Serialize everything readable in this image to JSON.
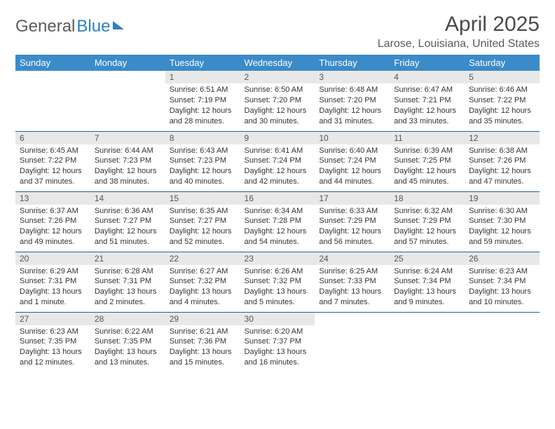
{
  "brand": {
    "part1": "General",
    "part2": "Blue"
  },
  "title": "April 2025",
  "location": "Larose, Louisiana, United States",
  "colors": {
    "header_bg": "#3b8bc9",
    "header_text": "#ffffff",
    "daynum_bg": "#e8e8e8",
    "row_border": "#2f5e8a",
    "body_text": "#333333",
    "title_text": "#4a4a4a",
    "brand_gray": "#5a5a5a",
    "brand_blue": "#2f7fc1"
  },
  "typography": {
    "title_fontsize": 30,
    "location_fontsize": 16,
    "header_fontsize": 13,
    "daynum_fontsize": 12,
    "cell_fontsize": 11
  },
  "weekdays": [
    "Sunday",
    "Monday",
    "Tuesday",
    "Wednesday",
    "Thursday",
    "Friday",
    "Saturday"
  ],
  "weeks": [
    [
      null,
      null,
      {
        "d": "1",
        "sr": "6:51 AM",
        "ss": "7:19 PM",
        "dl": "12 hours and 28 minutes."
      },
      {
        "d": "2",
        "sr": "6:50 AM",
        "ss": "7:20 PM",
        "dl": "12 hours and 30 minutes."
      },
      {
        "d": "3",
        "sr": "6:48 AM",
        "ss": "7:20 PM",
        "dl": "12 hours and 31 minutes."
      },
      {
        "d": "4",
        "sr": "6:47 AM",
        "ss": "7:21 PM",
        "dl": "12 hours and 33 minutes."
      },
      {
        "d": "5",
        "sr": "6:46 AM",
        "ss": "7:22 PM",
        "dl": "12 hours and 35 minutes."
      }
    ],
    [
      {
        "d": "6",
        "sr": "6:45 AM",
        "ss": "7:22 PM",
        "dl": "12 hours and 37 minutes."
      },
      {
        "d": "7",
        "sr": "6:44 AM",
        "ss": "7:23 PM",
        "dl": "12 hours and 38 minutes."
      },
      {
        "d": "8",
        "sr": "6:43 AM",
        "ss": "7:23 PM",
        "dl": "12 hours and 40 minutes."
      },
      {
        "d": "9",
        "sr": "6:41 AM",
        "ss": "7:24 PM",
        "dl": "12 hours and 42 minutes."
      },
      {
        "d": "10",
        "sr": "6:40 AM",
        "ss": "7:24 PM",
        "dl": "12 hours and 44 minutes."
      },
      {
        "d": "11",
        "sr": "6:39 AM",
        "ss": "7:25 PM",
        "dl": "12 hours and 45 minutes."
      },
      {
        "d": "12",
        "sr": "6:38 AM",
        "ss": "7:26 PM",
        "dl": "12 hours and 47 minutes."
      }
    ],
    [
      {
        "d": "13",
        "sr": "6:37 AM",
        "ss": "7:26 PM",
        "dl": "12 hours and 49 minutes."
      },
      {
        "d": "14",
        "sr": "6:36 AM",
        "ss": "7:27 PM",
        "dl": "12 hours and 51 minutes."
      },
      {
        "d": "15",
        "sr": "6:35 AM",
        "ss": "7:27 PM",
        "dl": "12 hours and 52 minutes."
      },
      {
        "d": "16",
        "sr": "6:34 AM",
        "ss": "7:28 PM",
        "dl": "12 hours and 54 minutes."
      },
      {
        "d": "17",
        "sr": "6:33 AM",
        "ss": "7:29 PM",
        "dl": "12 hours and 56 minutes."
      },
      {
        "d": "18",
        "sr": "6:32 AM",
        "ss": "7:29 PM",
        "dl": "12 hours and 57 minutes."
      },
      {
        "d": "19",
        "sr": "6:30 AM",
        "ss": "7:30 PM",
        "dl": "12 hours and 59 minutes."
      }
    ],
    [
      {
        "d": "20",
        "sr": "6:29 AM",
        "ss": "7:31 PM",
        "dl": "13 hours and 1 minute."
      },
      {
        "d": "21",
        "sr": "6:28 AM",
        "ss": "7:31 PM",
        "dl": "13 hours and 2 minutes."
      },
      {
        "d": "22",
        "sr": "6:27 AM",
        "ss": "7:32 PM",
        "dl": "13 hours and 4 minutes."
      },
      {
        "d": "23",
        "sr": "6:26 AM",
        "ss": "7:32 PM",
        "dl": "13 hours and 5 minutes."
      },
      {
        "d": "24",
        "sr": "6:25 AM",
        "ss": "7:33 PM",
        "dl": "13 hours and 7 minutes."
      },
      {
        "d": "25",
        "sr": "6:24 AM",
        "ss": "7:34 PM",
        "dl": "13 hours and 9 minutes."
      },
      {
        "d": "26",
        "sr": "6:23 AM",
        "ss": "7:34 PM",
        "dl": "13 hours and 10 minutes."
      }
    ],
    [
      {
        "d": "27",
        "sr": "6:23 AM",
        "ss": "7:35 PM",
        "dl": "13 hours and 12 minutes."
      },
      {
        "d": "28",
        "sr": "6:22 AM",
        "ss": "7:35 PM",
        "dl": "13 hours and 13 minutes."
      },
      {
        "d": "29",
        "sr": "6:21 AM",
        "ss": "7:36 PM",
        "dl": "13 hours and 15 minutes."
      },
      {
        "d": "30",
        "sr": "6:20 AM",
        "ss": "7:37 PM",
        "dl": "13 hours and 16 minutes."
      },
      null,
      null,
      null
    ]
  ],
  "labels": {
    "sunrise": "Sunrise: ",
    "sunset": "Sunset: ",
    "daylight": "Daylight: "
  }
}
